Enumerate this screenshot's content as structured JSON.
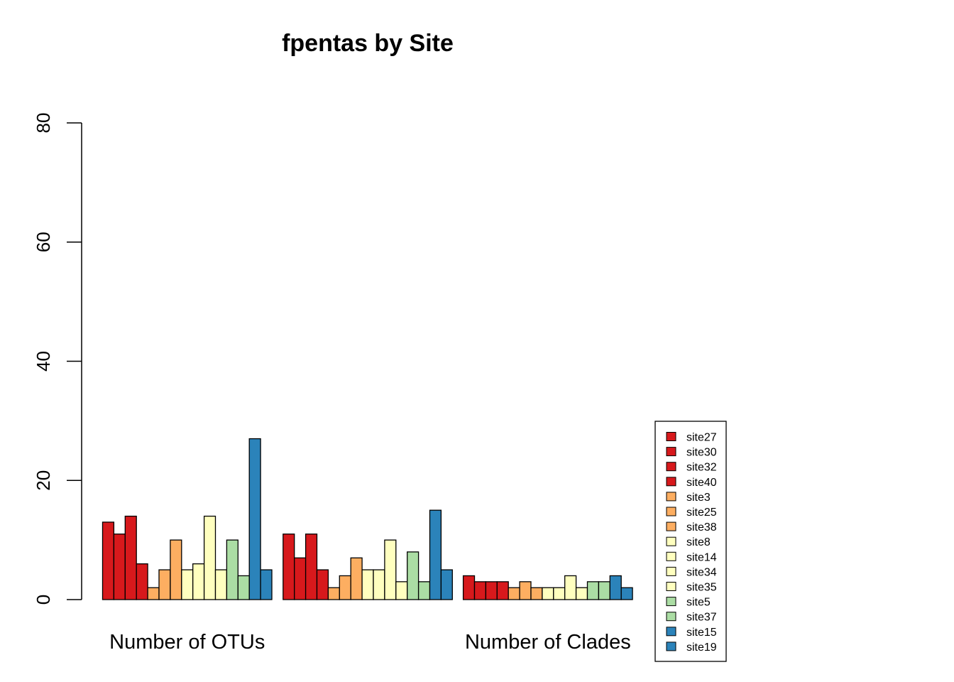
{
  "chart_data": {
    "type": "bar",
    "title": "fpentas by Site",
    "xlabel": "",
    "ylabel": "",
    "ylim": [
      0,
      80
    ],
    "yticks": [
      0,
      20,
      40,
      60,
      80
    ],
    "groups": [
      "Number of OTUs",
      "",
      "Number of Clades"
    ],
    "series": [
      {
        "name": "site27",
        "color": "#d7191c",
        "values": [
          13,
          11,
          4
        ]
      },
      {
        "name": "site30",
        "color": "#d7191c",
        "values": [
          11,
          7,
          3
        ]
      },
      {
        "name": "site32",
        "color": "#d7191c",
        "values": [
          14,
          11,
          3
        ]
      },
      {
        "name": "site40",
        "color": "#d7191c",
        "values": [
          6,
          5,
          3
        ]
      },
      {
        "name": "site3",
        "color": "#fdae61",
        "values": [
          2,
          2,
          2
        ]
      },
      {
        "name": "site25",
        "color": "#fdae61",
        "values": [
          5,
          4,
          3
        ]
      },
      {
        "name": "site38",
        "color": "#fdae61",
        "values": [
          10,
          7,
          2
        ]
      },
      {
        "name": "site8",
        "color": "#ffffbf",
        "values": [
          5,
          5,
          2
        ]
      },
      {
        "name": "site14",
        "color": "#ffffbf",
        "values": [
          6,
          5,
          2
        ]
      },
      {
        "name": "site34",
        "color": "#ffffbf",
        "values": [
          14,
          10,
          4
        ]
      },
      {
        "name": "site35",
        "color": "#ffffbf",
        "values": [
          5,
          3,
          2
        ]
      },
      {
        "name": "site5",
        "color": "#abdda4",
        "values": [
          10,
          8,
          3
        ]
      },
      {
        "name": "site37",
        "color": "#abdda4",
        "values": [
          4,
          3,
          3
        ]
      },
      {
        "name": "site15",
        "color": "#2b83ba",
        "values": [
          27,
          15,
          4
        ]
      },
      {
        "name": "site19",
        "color": "#2b83ba",
        "values": [
          5,
          5,
          2
        ]
      }
    ],
    "legend": "right",
    "grid": false
  }
}
